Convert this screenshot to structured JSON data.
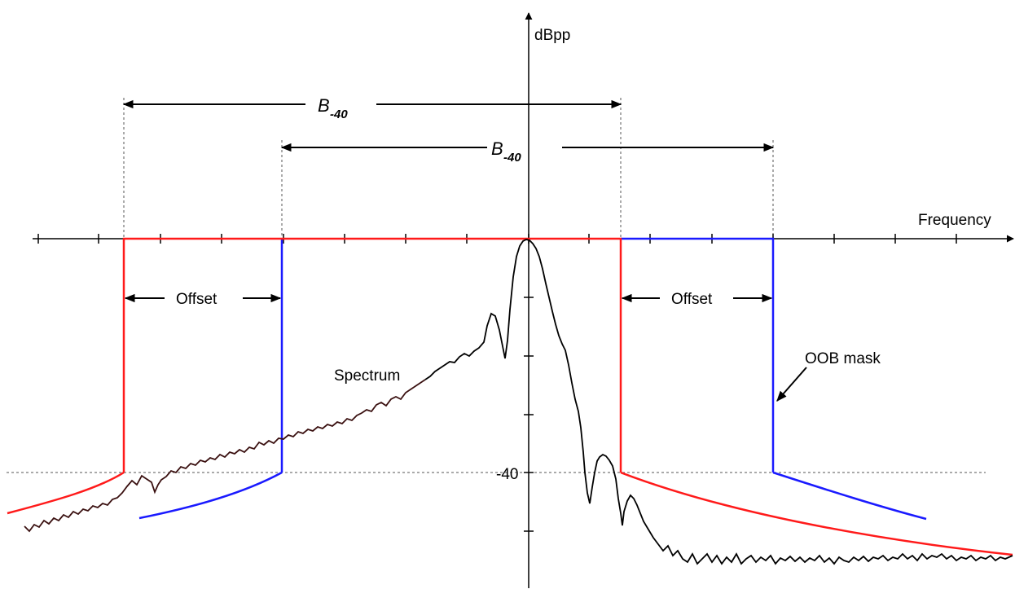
{
  "labels": {
    "y_axis_unit": "dBpp",
    "x_axis": "Frequency",
    "level_tick": "-40",
    "bandwidth_main": "B",
    "bandwidth_sub": "-40",
    "offset": "Offset",
    "spectrum": "Spectrum",
    "oob_mask": "OOB mask"
  },
  "colors": {
    "red_mask": "#ff1a1a",
    "blue_mask": "#1a1aff",
    "spectrum": "#000000",
    "spectrum_left": "#3a1010",
    "axis": "#000000",
    "guide": "#555555"
  }
}
